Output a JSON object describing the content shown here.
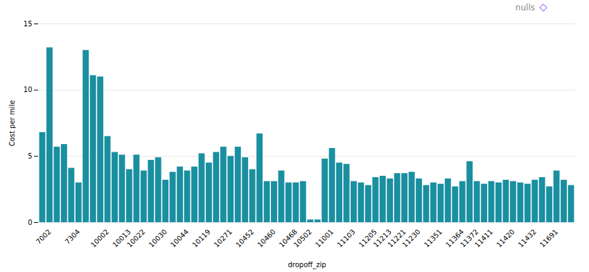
{
  "chart_data": {
    "type": "bar",
    "xlabel": "dropoff_zip",
    "ylabel": "Cost per mile",
    "categories": [
      null,
      "7002",
      null,
      null,
      null,
      "7304",
      null,
      null,
      null,
      "10002",
      null,
      null,
      "10013",
      null,
      "10022",
      null,
      null,
      "10030",
      null,
      null,
      "10044",
      null,
      null,
      "10119",
      null,
      null,
      "10271",
      null,
      null,
      "10452",
      null,
      null,
      "10460",
      null,
      null,
      "10468",
      null,
      "10502",
      null,
      null,
      "11001",
      null,
      null,
      "11103",
      null,
      null,
      "11205",
      null,
      "11213",
      null,
      "11221",
      null,
      "11230",
      null,
      null,
      "11351",
      null,
      null,
      "11364",
      null,
      "11372",
      null,
      "11411",
      null,
      null,
      "11420",
      null,
      null,
      "11432",
      null,
      null,
      "11691",
      null,
      null
    ],
    "values": [
      6.8,
      13.2,
      5.7,
      5.9,
      4.1,
      3.0,
      13.0,
      11.1,
      11.0,
      6.5,
      5.3,
      5.1,
      4.0,
      5.1,
      3.9,
      4.7,
      4.9,
      3.2,
      3.8,
      4.2,
      3.9,
      4.2,
      5.2,
      4.5,
      5.3,
      5.7,
      5.0,
      5.7,
      4.9,
      4.0,
      6.7,
      3.1,
      3.1,
      3.9,
      3.0,
      3.0,
      3.1,
      0.2,
      0.2,
      4.8,
      5.6,
      4.5,
      4.4,
      3.1,
      3.0,
      2.8,
      3.4,
      3.5,
      3.3,
      3.7,
      3.7,
      3.8,
      3.3,
      2.8,
      3.0,
      2.9,
      3.3,
      2.7,
      3.1,
      4.6,
      3.1,
      2.9,
      3.1,
      3.0,
      3.2,
      3.1,
      3.0,
      2.9,
      3.2,
      3.4,
      2.7,
      3.9,
      3.2,
      2.8
    ],
    "color": "#1a8fa0",
    "ylim": [
      0,
      15
    ],
    "yticks": [
      0,
      5,
      10,
      15
    ],
    "grid": true,
    "annotations": [
      {
        "text": "nulls",
        "color": "#c084fc",
        "marker": "diamond"
      }
    ]
  }
}
